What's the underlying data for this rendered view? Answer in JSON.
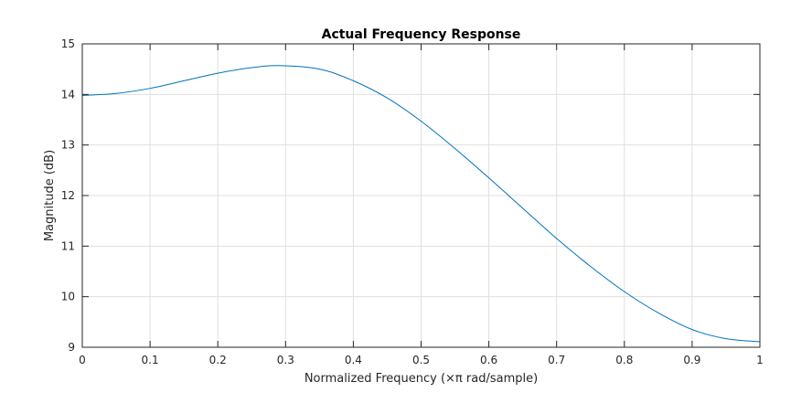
{
  "chart_data": {
    "type": "line",
    "title": "Actual Frequency Response",
    "xlabel": "Normalized Frequency  (×π rad/sample)",
    "ylabel": "Magnitude (dB)",
    "xlim": [
      0,
      1
    ],
    "ylim": [
      9,
      15
    ],
    "xticks": [
      "0",
      "0.1",
      "0.2",
      "0.3",
      "0.4",
      "0.5",
      "0.6",
      "0.7",
      "0.8",
      "0.9",
      "1"
    ],
    "yticks": [
      "9",
      "10",
      "11",
      "12",
      "13",
      "14",
      "15"
    ],
    "grid": true,
    "series": [
      {
        "color": "#0072bd",
        "x": [
          0,
          0.05,
          0.1,
          0.15,
          0.2,
          0.25,
          0.29,
          0.35,
          0.4,
          0.45,
          0.5,
          0.55,
          0.6,
          0.65,
          0.7,
          0.75,
          0.8,
          0.85,
          0.9,
          0.95,
          1.0
        ],
        "y": [
          13.98,
          14.02,
          14.12,
          14.27,
          14.42,
          14.53,
          14.57,
          14.5,
          14.27,
          13.93,
          13.47,
          12.93,
          12.35,
          11.75,
          11.15,
          10.6,
          10.1,
          9.68,
          9.35,
          9.17,
          9.11
        ]
      }
    ]
  }
}
